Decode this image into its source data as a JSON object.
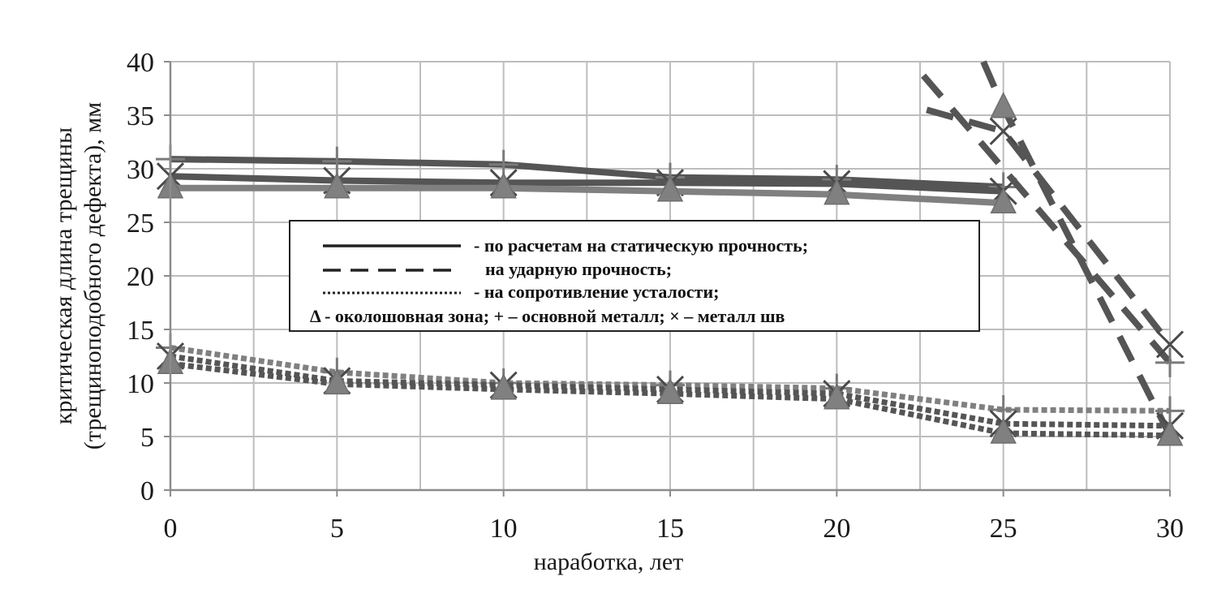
{
  "chart_data": {
    "type": "line",
    "title": "",
    "xlabel": "наработка, лет",
    "ylabel_lines": [
      "критическая  длина  трещины",
      "(трещиноподобного  дефекта), мм"
    ],
    "x_ticks": [
      0,
      5,
      10,
      15,
      20,
      25,
      30
    ],
    "y_ticks": [
      0,
      5,
      10,
      15,
      20,
      25,
      30,
      35,
      40
    ],
    "xlim": [
      0,
      30
    ],
    "ylim": [
      0,
      40
    ],
    "grid": true,
    "legend_placement": "center",
    "legend": [
      {
        "style": "solid",
        "label": "- по расчетам на статическую  прочность;"
      },
      {
        "style": "dashed",
        "label": "на ударную прочность;"
      },
      {
        "style": "dotted",
        "label": "- на сопротивление усталости;"
      },
      {
        "style": "markers",
        "label": "Δ -  околошовная зона; + – основной металл; × – металл шв"
      }
    ],
    "colors": {
      "dark": "#555555",
      "light": "#808080",
      "grid": "#bdbdbd",
      "axis": "#8c8c8c"
    },
    "series": [
      {
        "group": "static",
        "marker": "plus",
        "color": "#555555",
        "dash": "solid",
        "x": [
          0,
          5,
          10,
          15,
          20,
          25
        ],
        "y": [
          30.9,
          30.7,
          30.4,
          29.2,
          29.0,
          28.3
        ]
      },
      {
        "group": "static",
        "marker": "cross",
        "color": "#555555",
        "dash": "solid",
        "x": [
          0,
          5,
          10,
          15,
          20,
          25
        ],
        "y": [
          29.3,
          28.9,
          28.7,
          28.7,
          28.6,
          27.9
        ]
      },
      {
        "group": "static",
        "marker": "triangle",
        "color": "#808080",
        "dash": "solid",
        "x": [
          0,
          5,
          10,
          15,
          20,
          25
        ],
        "y": [
          28.2,
          28.2,
          28.2,
          27.9,
          27.6,
          26.8
        ]
      },
      {
        "group": "impact",
        "marker": "plus",
        "color": "#555555",
        "dash": "dashed",
        "x": [
          22.6,
          30
        ],
        "y": [
          38.7,
          11.9
        ]
      },
      {
        "group": "impact",
        "marker": "cross",
        "color": "#555555",
        "dash": "dashed",
        "x": [
          22.7,
          25,
          30
        ],
        "y": [
          35.5,
          33.5,
          13.6
        ]
      },
      {
        "group": "impact",
        "marker": "triangle",
        "color": "#555555",
        "dash": "dashed",
        "x": [
          24.4,
          25,
          30
        ],
        "y": [
          40,
          35.7,
          5.1
        ]
      },
      {
        "group": "fatigue",
        "marker": "plus",
        "color": "#808080",
        "dash": "dotted",
        "x": [
          0,
          5,
          10,
          15,
          20,
          25,
          30
        ],
        "y": [
          13.3,
          11.0,
          10.0,
          9.8,
          9.5,
          7.5,
          7.4
        ]
      },
      {
        "group": "fatigue",
        "marker": "cross",
        "color": "#555555",
        "dash": "dotted",
        "x": [
          0,
          5,
          10,
          15,
          20,
          25,
          30
        ],
        "y": [
          12.5,
          10.2,
          9.8,
          9.4,
          9.0,
          6.2,
          6.0
        ]
      },
      {
        "group": "fatigue",
        "marker": "triangle",
        "color": "#555555",
        "dash": "dotted",
        "x": [
          0,
          5,
          10,
          15,
          20,
          25,
          30
        ],
        "y": [
          11.8,
          9.9,
          9.4,
          9.0,
          8.5,
          5.3,
          5.1
        ]
      }
    ]
  }
}
